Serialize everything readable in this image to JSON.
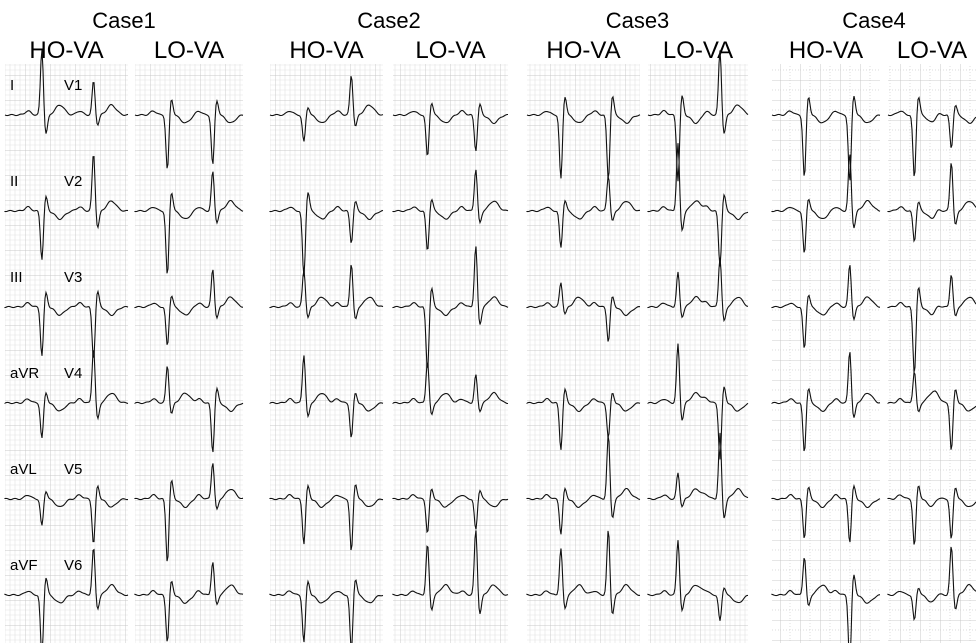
{
  "cases": [
    {
      "title": "Case1",
      "panels": [
        {
          "label": "HO-VA"
        },
        {
          "label": "LO-VA"
        }
      ]
    },
    {
      "title": "Case2",
      "panels": [
        {
          "label": "HO-VA"
        },
        {
          "label": "LO-VA"
        }
      ]
    },
    {
      "title": "Case3",
      "panels": [
        {
          "label": "HO-VA"
        },
        {
          "label": "LO-VA"
        }
      ]
    },
    {
      "title": "Case4",
      "panels": [
        {
          "label": "HO-VA"
        },
        {
          "label": "LO-VA"
        }
      ]
    }
  ],
  "leads": [
    {
      "limb": "I",
      "chest": "V1"
    },
    {
      "limb": "II",
      "chest": "V2"
    },
    {
      "limb": "III",
      "chest": "V3"
    },
    {
      "limb": "aVR",
      "chest": "V4"
    },
    {
      "limb": "aVL",
      "chest": "V5"
    },
    {
      "limb": "aVF",
      "chest": "V6"
    }
  ]
}
